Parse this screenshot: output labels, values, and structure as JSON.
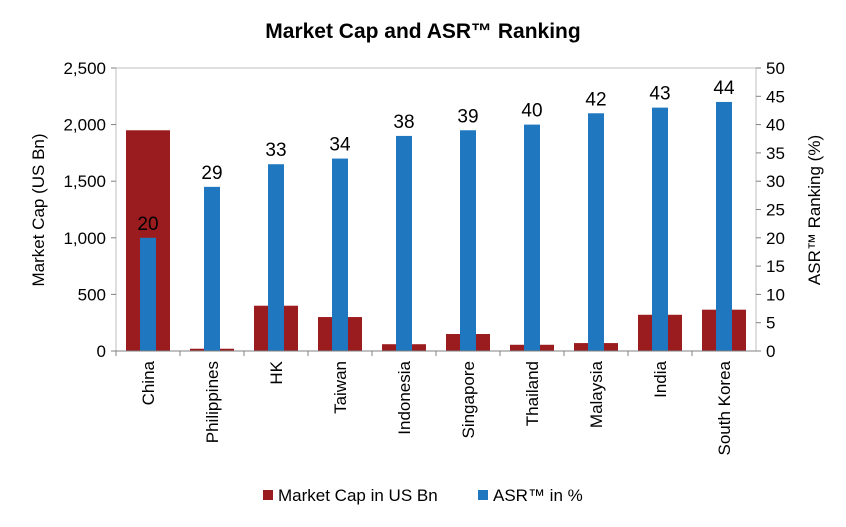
{
  "chart_data": {
    "type": "bar",
    "title": "Market Cap and ASR™ Ranking",
    "categories": [
      "China",
      "Philippines",
      "HK",
      "Taiwan",
      "Indonesia",
      "Singapore",
      "Thailand",
      "Malaysia",
      "India",
      "South Korea"
    ],
    "series": [
      {
        "name": "Market Cap in US Bn",
        "axis": "left",
        "color": "#9b1c1f",
        "values": [
          1950,
          20,
          400,
          300,
          60,
          150,
          55,
          70,
          320,
          365
        ]
      },
      {
        "name": "ASR™ in %",
        "axis": "right",
        "color": "#1f77c0",
        "values": [
          20,
          29,
          33,
          34,
          38,
          39,
          40,
          42,
          43,
          44
        ],
        "data_labels": [
          "20",
          "29",
          "33",
          "34",
          "38",
          "39",
          "40",
          "42",
          "43",
          "44"
        ]
      }
    ],
    "y_left": {
      "label": "Market Cap (US Bn)",
      "range": [
        0,
        2500
      ],
      "ticks": [
        "0",
        "500",
        "1,000",
        "1,500",
        "2,000",
        "2,500"
      ],
      "tick_values": [
        0,
        500,
        1000,
        1500,
        2000,
        2500
      ]
    },
    "y_right": {
      "label": "ASR™ Ranking (%)",
      "range": [
        0,
        50
      ],
      "ticks": [
        "0",
        "5",
        "10",
        "15",
        "20",
        "25",
        "30",
        "35",
        "40",
        "45",
        "50"
      ],
      "tick_values": [
        0,
        5,
        10,
        15,
        20,
        25,
        30,
        35,
        40,
        45,
        50
      ]
    },
    "grid": false,
    "legend": "bottom"
  }
}
